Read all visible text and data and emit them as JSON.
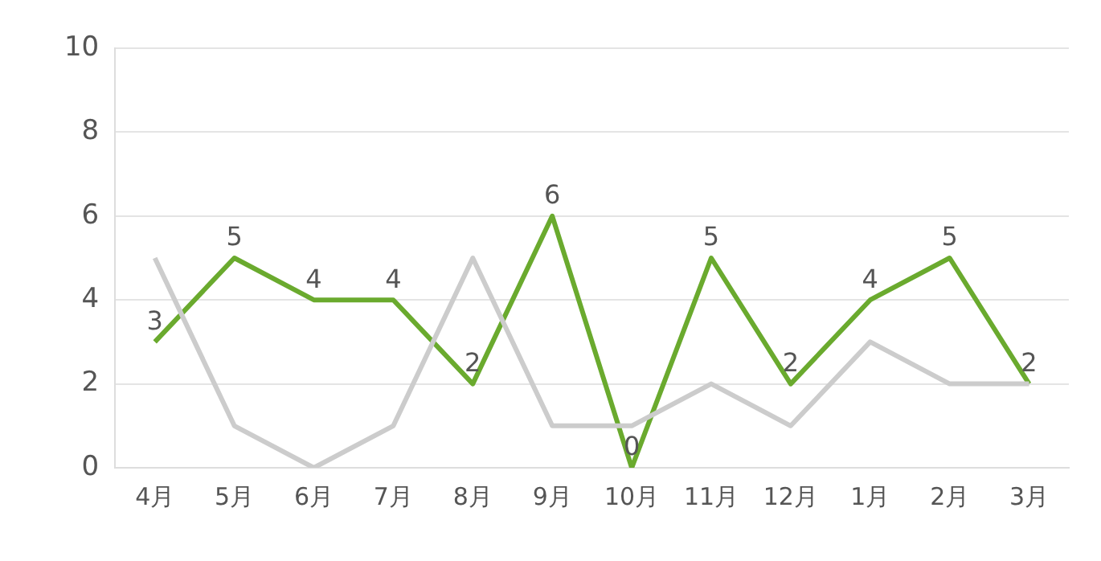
{
  "chart_data": {
    "type": "line",
    "categories": [
      "4月",
      "5月",
      "6月",
      "7月",
      "8月",
      "9月",
      "10月",
      "11月",
      "12月",
      "1月",
      "2月",
      "3月"
    ],
    "series": [
      {
        "color": "#cccccc",
        "values": [
          5,
          1,
          0,
          1,
          5,
          1,
          1,
          2,
          1,
          3,
          2,
          2
        ]
      },
      {
        "color": "#6aaa2e",
        "values": [
          3,
          5,
          4,
          4,
          2,
          6,
          0,
          5,
          2,
          4,
          5,
          2
        ],
        "value_labels": [
          "3",
          "5",
          "4",
          "4",
          "2",
          "6",
          "0",
          "5",
          "2",
          "4",
          "5",
          "2"
        ]
      }
    ],
    "ylim": [
      0,
      10
    ],
    "yticks": [
      0,
      2,
      4,
      6,
      8,
      10
    ],
    "grid": "y",
    "legend": false,
    "marker": "none",
    "line_style": "solid"
  }
}
